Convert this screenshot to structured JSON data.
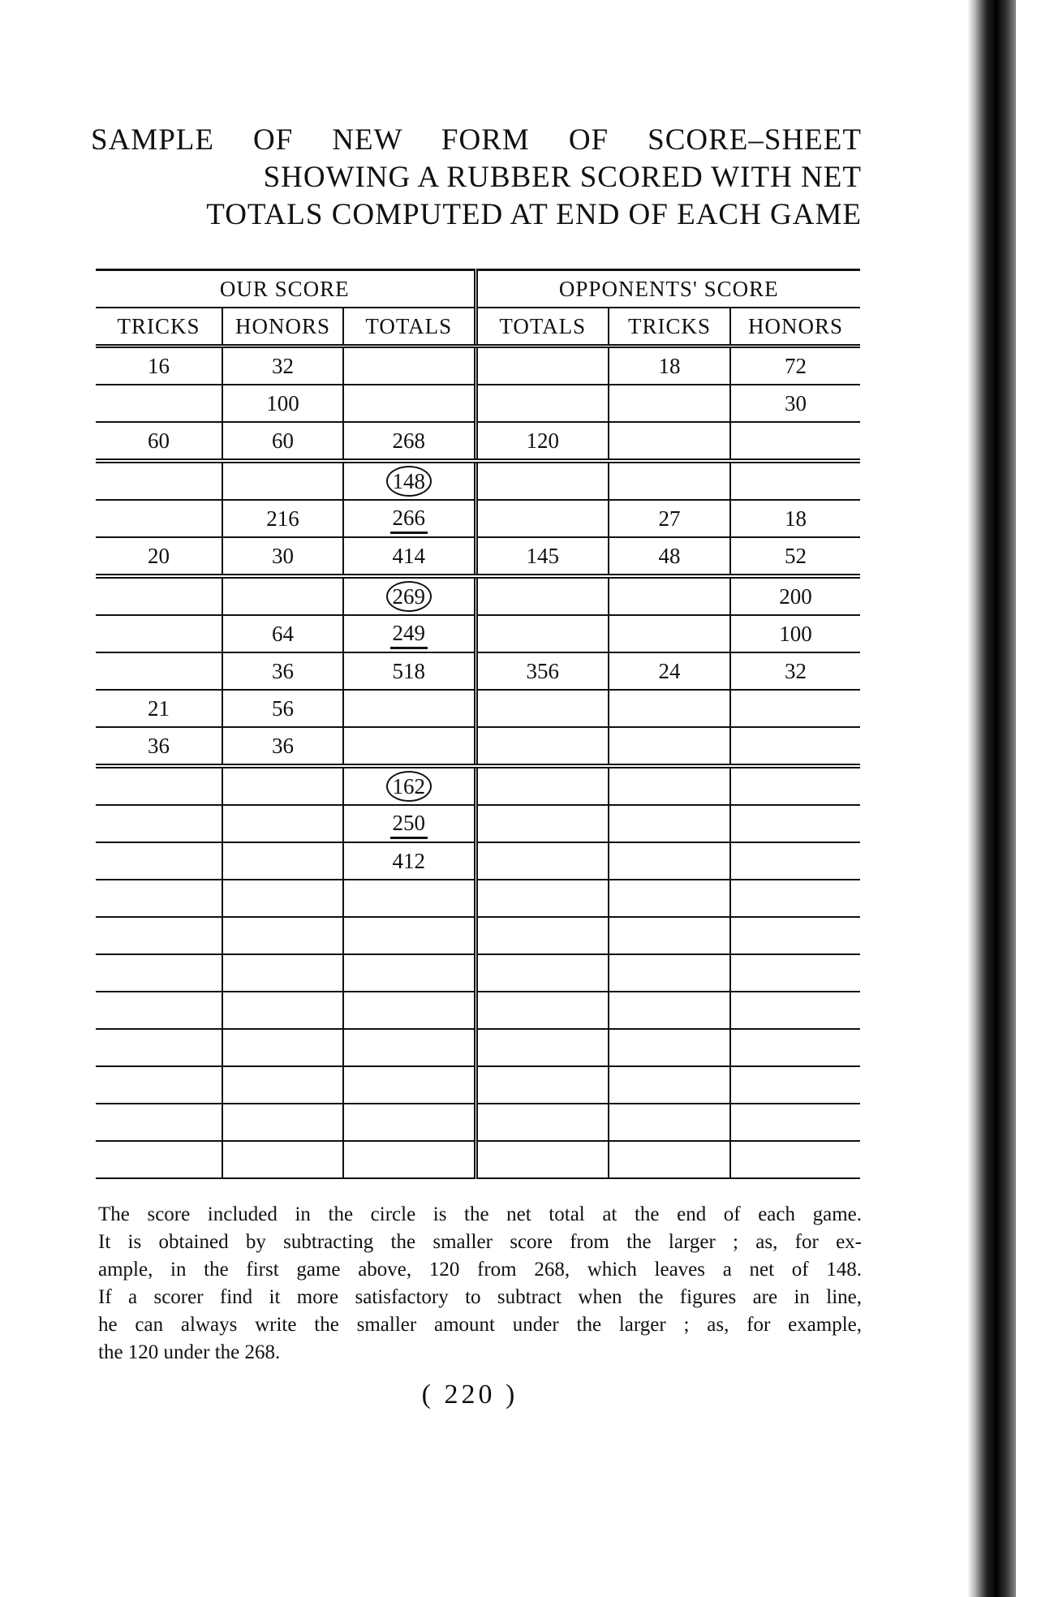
{
  "title": {
    "line1": "SAMPLE OF NEW FORM OF SCORE–SHEET",
    "line2": "SHOWING A RUBBER SCORED WITH NET",
    "line3": "TOTALS COMPUTED AT END OF EACH GAME"
  },
  "table": {
    "groups": [
      "OUR SCORE",
      "OPPONENTS' SCORE"
    ],
    "columns": [
      "TRICKS",
      "HONORS",
      "TOTALS",
      "TOTALS",
      "TRICKS",
      "HONORS"
    ],
    "rows": [
      [
        "16",
        "32",
        "",
        "",
        "18",
        "72"
      ],
      [
        "",
        "100",
        "",
        "",
        "",
        "30"
      ],
      [
        "60",
        "60",
        "268",
        "120",
        "",
        ""
      ],
      [
        "",
        "",
        "148",
        "",
        "",
        ""
      ],
      [
        "",
        "216",
        "266",
        "",
        "27",
        "18"
      ],
      [
        "20",
        "30",
        "414",
        "145",
        "48",
        "52"
      ],
      [
        "",
        "",
        "269",
        "",
        "",
        "200"
      ],
      [
        "",
        "64",
        "249",
        "",
        "",
        "100"
      ],
      [
        "",
        "36",
        "518",
        "356",
        "24",
        "32"
      ],
      [
        "21",
        "56",
        "",
        "",
        "",
        ""
      ],
      [
        "36",
        "36",
        "",
        "",
        "",
        ""
      ],
      [
        "",
        "",
        "162",
        "",
        "",
        ""
      ],
      [
        "",
        "",
        "250",
        "",
        "",
        ""
      ],
      [
        "",
        "",
        "412",
        "",
        "",
        ""
      ],
      [
        "",
        "",
        "",
        "",
        "",
        ""
      ],
      [
        "",
        "",
        "",
        "",
        "",
        ""
      ],
      [
        "",
        "",
        "",
        "",
        "",
        ""
      ],
      [
        "",
        "",
        "",
        "",
        "",
        ""
      ],
      [
        "",
        "",
        "",
        "",
        "",
        ""
      ],
      [
        "",
        "",
        "",
        "",
        "",
        ""
      ],
      [
        "",
        "",
        "",
        "",
        "",
        ""
      ],
      [
        "",
        "",
        "",
        "",
        "",
        ""
      ]
    ],
    "game_end_rows": [
      2,
      5,
      10
    ],
    "circled_cells": [
      [
        3,
        2
      ],
      [
        6,
        2
      ],
      [
        11,
        2
      ]
    ],
    "underlined_cells": [
      [
        4,
        2
      ],
      [
        7,
        2
      ],
      [
        12,
        2
      ]
    ]
  },
  "caption": {
    "lines": [
      "The score included in the circle is the net total at the end of each game.",
      "It is obtained by subtracting the smaller score from the larger ; as, for ex-",
      "ample, in the first game above, 120 from 268, which leaves a net of 148.",
      "If a scorer find it more satisfactory to subtract when the figures are in line,",
      "he can always write the smaller amount under the larger ; as, for example,",
      "the 120 under the 268."
    ]
  },
  "page_number": "( 220 )"
}
